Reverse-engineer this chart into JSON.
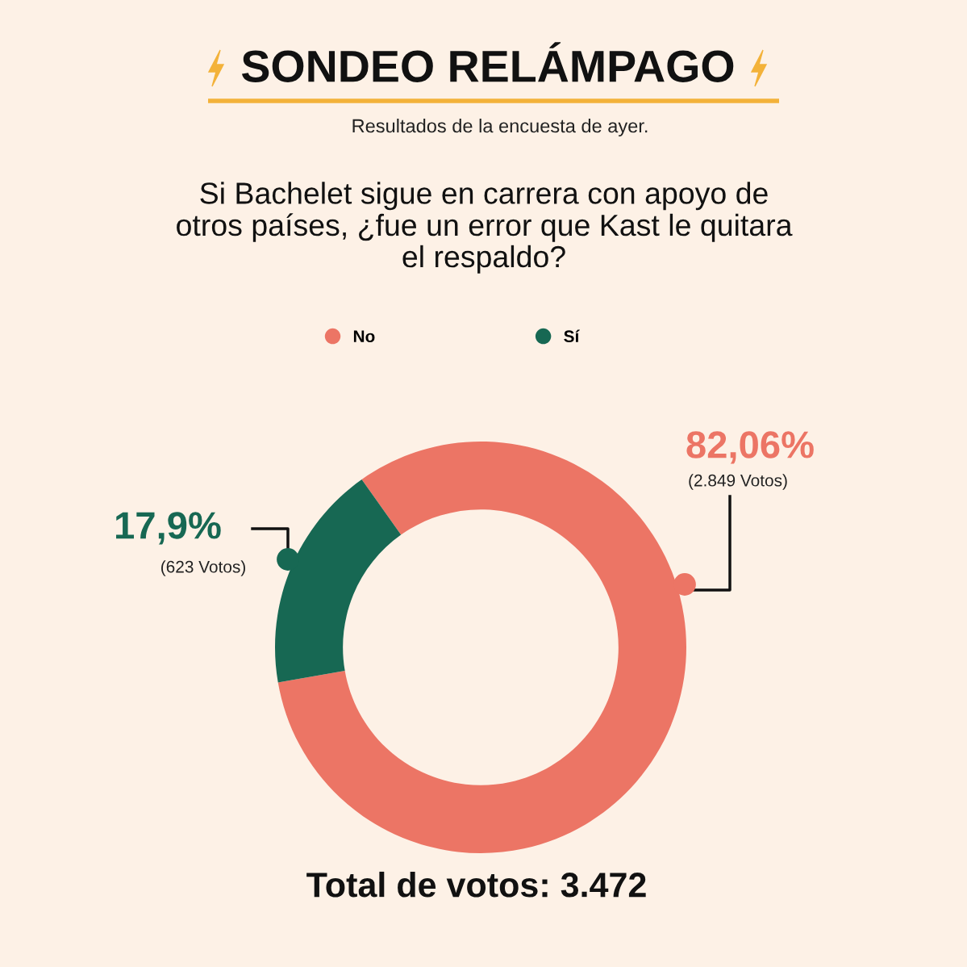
{
  "chart_data": {
    "type": "donut",
    "title": "SONDEO RELÁMPAGO",
    "subtitle": "Resultados de la encuesta de ayer.",
    "categories": [
      "No",
      "Sí"
    ],
    "values": [
      82.06,
      17.9
    ],
    "colors": [
      "#ec7565",
      "#176853"
    ],
    "value_labels": [
      "82,06%",
      "17,9%"
    ],
    "legend": "top",
    "annotations": [
      "Si Bachelet sigue en carrera con apoyo de\notros países, ¿fue un error que Kast le quitara\nel respaldo?",
      {
        "text": "(2.849 Votos)",
        "x": "No"
      },
      {
        "text": "(623 Votos)",
        "x": "Sí"
      },
      "Total de votos: 3.472"
    ]
  }
}
